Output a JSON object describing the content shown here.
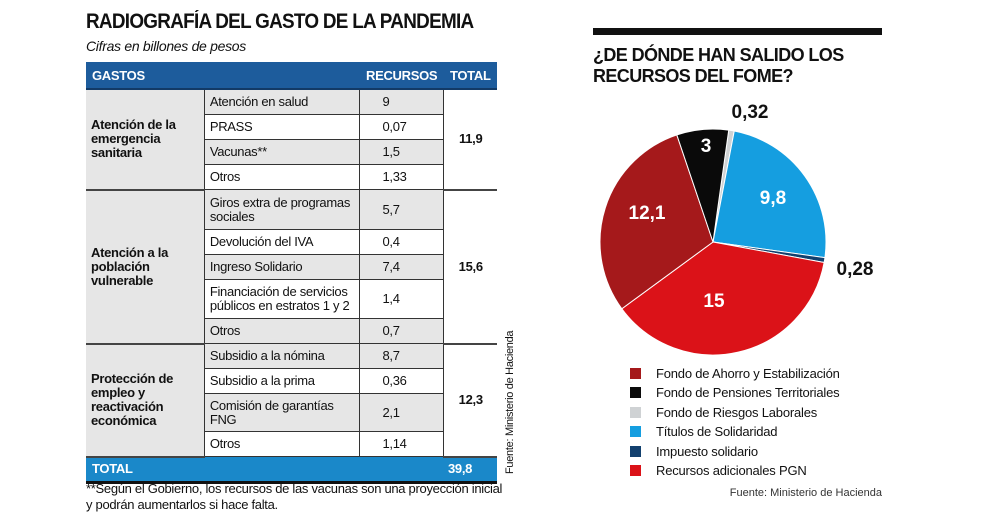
{
  "table": {
    "title": "RADIOGRAFÍA DEL GASTO DE LA PANDEMIA",
    "subtitle": "Cifras en billones de pesos",
    "headers": {
      "gastos": "GASTOS",
      "recursos": "RECURSOS",
      "total": "TOTAL"
    },
    "groups": [
      {
        "name": "Atención de la emergencia sanitaria",
        "total": "11,9",
        "items": [
          {
            "label": "Atención en salud",
            "value": "9"
          },
          {
            "label": "PRASS",
            "value": "0,07"
          },
          {
            "label": "Vacunas**",
            "value": "1,5"
          },
          {
            "label": "Otros",
            "value": "1,33"
          }
        ]
      },
      {
        "name": "Atención a la población vulnerable",
        "total": "15,6",
        "items": [
          {
            "label": "Giros extra de programas sociales",
            "value": "5,7"
          },
          {
            "label": "Devolución del IVA",
            "value": "0,4"
          },
          {
            "label": "Ingreso Solidario",
            "value": "7,4"
          },
          {
            "label": "Financiación de servicios públicos en estratos 1 y 2",
            "value": "1,4"
          },
          {
            "label": "Otros",
            "value": "0,7"
          }
        ]
      },
      {
        "name": "Protección de empleo y reactivación económica",
        "total": "12,3",
        "items": [
          {
            "label": "Subsidio a la nómina",
            "value": "8,7"
          },
          {
            "label": "Subsidio a la prima",
            "value": "0,36"
          },
          {
            "label": "Comisión de garantías FNG",
            "value": "2,1"
          },
          {
            "label": "Otros",
            "value": "1,14"
          }
        ]
      }
    ],
    "total_label": "TOTAL",
    "total_value": "39,8",
    "footnote": "**Según el Gobierno, los recursos de las vacunas son una proyección inicial y podrán aumentarlos si hace falta.",
    "source": "Fuente: Ministerio de Hacienda"
  },
  "chart_data": {
    "type": "pie",
    "title": "¿DE DÓNDE HAN SALIDO LOS RECURSOS DEL FOME?",
    "slices": [
      {
        "name": "Fondo de Riesgos Laborales",
        "value": 0.32,
        "label": "0,32",
        "color": "#cfd2d4"
      },
      {
        "name": "Títulos de Solidaridad",
        "value": 9.8,
        "label": "9,8",
        "color": "#159ee0"
      },
      {
        "name": "Impuesto solidario",
        "value": 0.28,
        "label": "0,28",
        "color": "#12406e"
      },
      {
        "name": "Recursos adicionales PGN",
        "value": 15,
        "label": "15",
        "color": "#db1218"
      },
      {
        "name": "Fondo de Ahorro y Estabilización",
        "value": 12.1,
        "label": "12,1",
        "color": "#a5191b"
      },
      {
        "name": "Fondo de Pensiones Territoriales",
        "value": 3,
        "label": "3",
        "color": "#0a0a0a"
      }
    ],
    "legend": [
      "Fondo de Ahorro y Estabilización",
      "Fondo de Pensiones Territoriales",
      "Fondo de Riesgos Laborales",
      "Títulos de Solidaridad",
      "Impuesto solidario",
      "Recursos adicionales PGN"
    ],
    "legend_position": "bottom",
    "source": "Fuente: Ministerio de Hacienda"
  }
}
